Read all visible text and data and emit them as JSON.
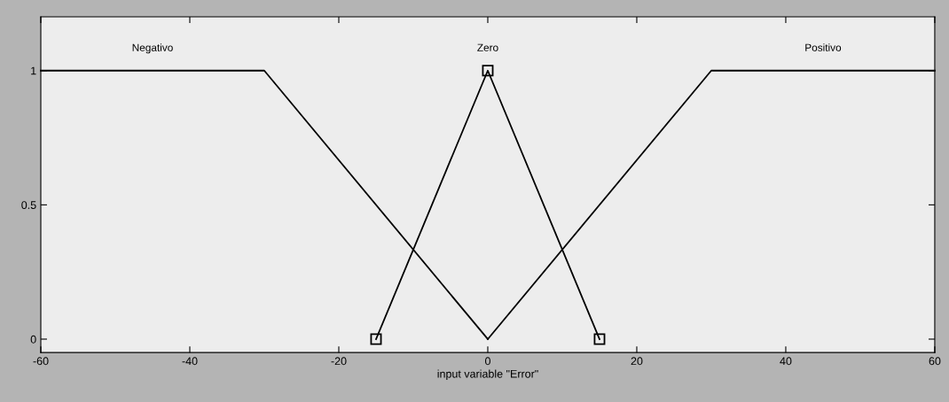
{
  "chart_data": {
    "type": "line",
    "xlabel": "input variable \"Error\"",
    "xlim": [
      -60,
      60
    ],
    "xticks": [
      -60,
      -40,
      -20,
      0,
      20,
      40,
      60
    ],
    "ylim": [
      -0.05,
      1.2
    ],
    "yticks": [
      0,
      0.5,
      1
    ],
    "series": [
      {
        "name": "Negativo",
        "color": "#000000",
        "x": [
          -60,
          -30,
          0
        ],
        "values": [
          1,
          1,
          0
        ],
        "marker": "none"
      },
      {
        "name": "Zero",
        "color": "#000000",
        "x": [
          -15,
          0,
          15
        ],
        "values": [
          0,
          1,
          0
        ],
        "marker": "square"
      },
      {
        "name": "Positivo",
        "color": "#000000",
        "x": [
          0,
          30,
          60
        ],
        "values": [
          0,
          1,
          1
        ],
        "marker": "none"
      }
    ]
  }
}
